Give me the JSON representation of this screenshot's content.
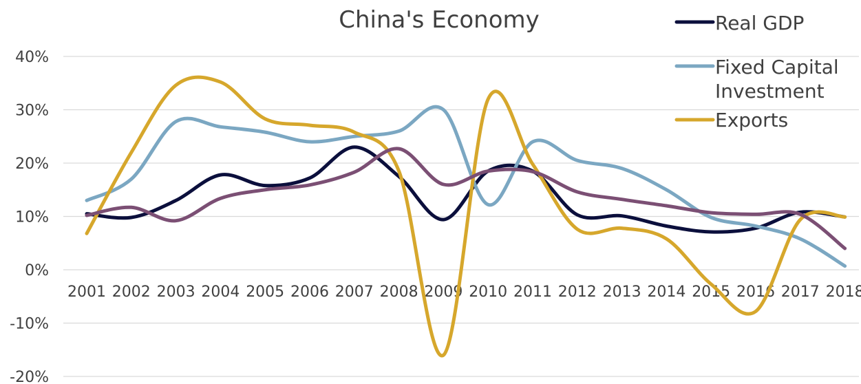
{
  "chart_data": {
    "type": "line",
    "title": "China's Economy",
    "categories": [
      "2001",
      "2002",
      "2003",
      "2004",
      "2005",
      "2006",
      "2007",
      "2008",
      "2009",
      "2010",
      "2011",
      "2012",
      "2013",
      "2014",
      "2015",
      "2016",
      "2017",
      "2018"
    ],
    "ylim": [
      -20,
      40
    ],
    "y_ticks": [
      {
        "value": 40,
        "label": "40%"
      },
      {
        "value": 30,
        "label": "30%"
      },
      {
        "value": 20,
        "label": "20%"
      },
      {
        "value": 10,
        "label": "10%"
      },
      {
        "value": 0,
        "label": "0%"
      },
      {
        "value": -10,
        "label": "-10%"
      },
      {
        "value": -20,
        "label": "-20%"
      }
    ],
    "grid": true,
    "legend_position": "top-right",
    "series": [
      {
        "name": "Real GDP",
        "color": "#0b0f3c",
        "in_legend": true,
        "values": [
          10.5,
          9.8,
          13,
          17.8,
          15.8,
          17.2,
          23,
          17.5,
          9.4,
          18.5,
          18.5,
          10.3,
          10.1,
          8.2,
          7.1,
          7.8,
          10.8,
          9.9
        ]
      },
      {
        "name": "Fixed Capital Investment",
        "color": "#7ba7c2",
        "in_legend": true,
        "values": [
          13,
          17,
          27.8,
          26.8,
          25.8,
          24,
          25,
          26,
          30,
          12.2,
          24,
          20.5,
          19,
          15,
          9.8,
          8.2,
          5.8,
          0.7
        ]
      },
      {
        "name": "Exports",
        "color": "#d6a72c",
        "in_legend": true,
        "values": [
          6.8,
          22,
          34.6,
          35.2,
          28.3,
          27.1,
          25.8,
          18.5,
          -16,
          32,
          19.8,
          7.6,
          7.8,
          5.8,
          -2.7,
          -7.8,
          9.4,
          9.9
        ]
      },
      {
        "name": "",
        "color": "#7b4f74",
        "in_legend": false,
        "values": [
          10.2,
          11.7,
          9.2,
          13.4,
          15,
          15.9,
          18.3,
          22.7,
          16,
          18.5,
          18.4,
          14.6,
          13.2,
          12,
          10.7,
          10.4,
          10.4,
          4
        ]
      }
    ]
  }
}
